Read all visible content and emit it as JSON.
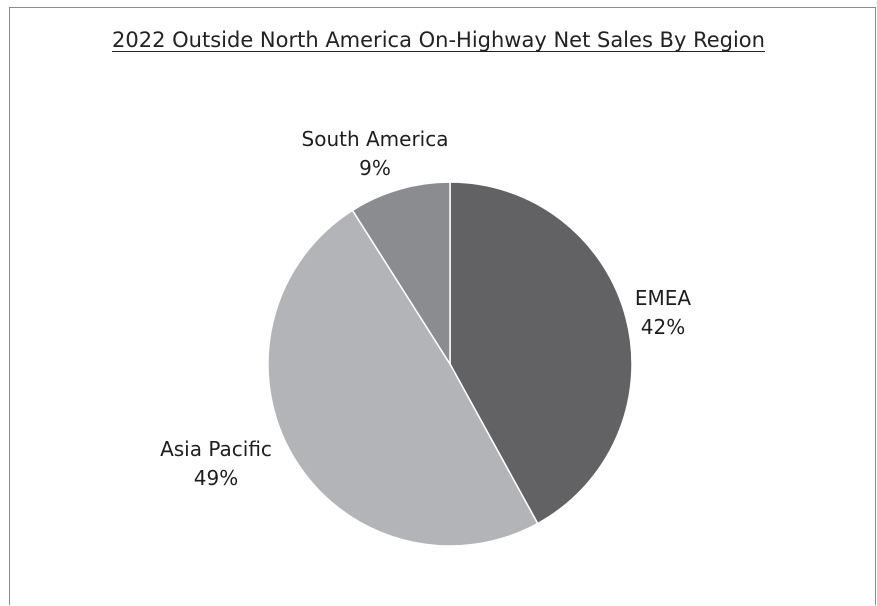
{
  "chart_data": {
    "type": "pie",
    "title": "2022 Outside North America On-Highway Net Sales By Region",
    "start_angle_deg": 0,
    "direction": "clockwise",
    "legend": "none",
    "slices": [
      {
        "name": "EMEA",
        "label": "42%",
        "value": 42,
        "color": "#626264"
      },
      {
        "name": "Asia Pacific",
        "label": "49%",
        "value": 49,
        "color": "#b3b4b7"
      },
      {
        "name": "South America",
        "label": "9%",
        "value": 9,
        "color": "#8b8c8f"
      }
    ]
  }
}
